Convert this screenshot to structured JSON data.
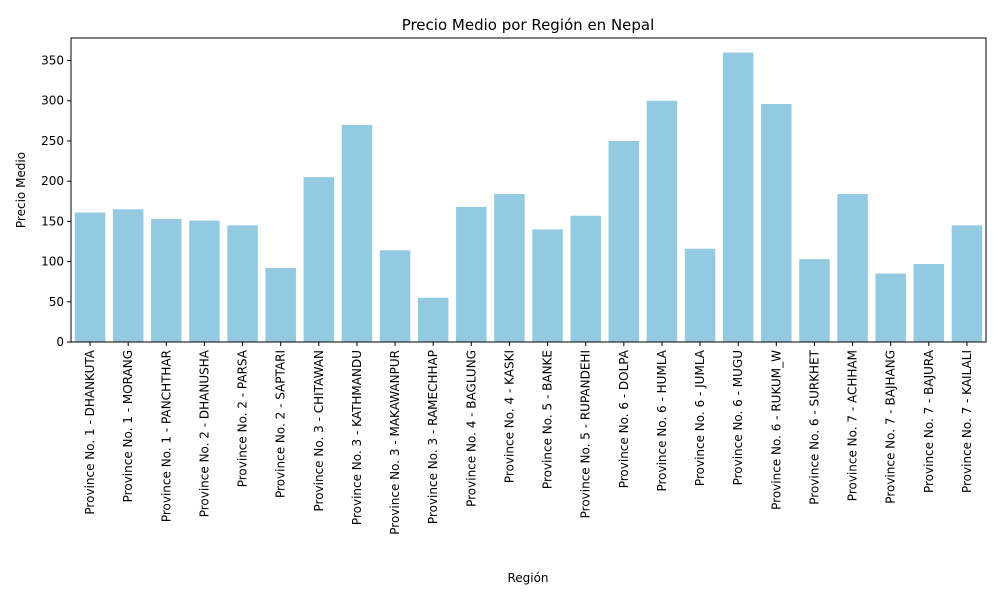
{
  "chart_data": {
    "type": "bar",
    "title": "Precio Medio por Región en Nepal",
    "xlabel": "Región",
    "ylabel": "Precio Medio",
    "ylim": [
      0,
      378
    ],
    "yticks": [
      0,
      50,
      100,
      150,
      200,
      250,
      300,
      350
    ],
    "bar_color": "#93cae2",
    "grid": false,
    "legend": "none",
    "categories": [
      "Province No. 1 - DHANKUTA",
      "Province No. 1 - MORANG",
      "Province No. 1 - PANCHTHAR",
      "Province No. 2 - DHANUSHA",
      "Province No. 2 - PARSA",
      "Province No. 2 - SAPTARI",
      "Province No. 3 - CHITAWAN",
      "Province No. 3 - KATHMANDU",
      "Province No. 3 - MAKAWANPUR",
      "Province No. 3 - RAMECHHAP",
      "Province No. 4 - BAGLUNG",
      "Province No. 4 - KASKI",
      "Province No. 5 - BANKE",
      "Province No. 5 - RUPANDEHI",
      "Province No. 6 - DOLPA",
      "Province No. 6 - HUMLA",
      "Province No. 6 - JUMLA",
      "Province No. 6 - MUGU",
      "Province No. 6 - RUKUM_W",
      "Province No. 6 - SURKHET",
      "Province No. 7 - ACHHAM",
      "Province No. 7 - BAJHANG",
      "Province No. 7 - BAJURA",
      "Province No. 7 - KAILALI"
    ],
    "values": [
      161,
      165,
      153,
      151,
      145,
      92,
      205,
      270,
      114,
      55,
      168,
      184,
      140,
      157,
      250,
      300,
      116,
      360,
      296,
      103,
      184,
      85,
      97,
      145
    ]
  }
}
